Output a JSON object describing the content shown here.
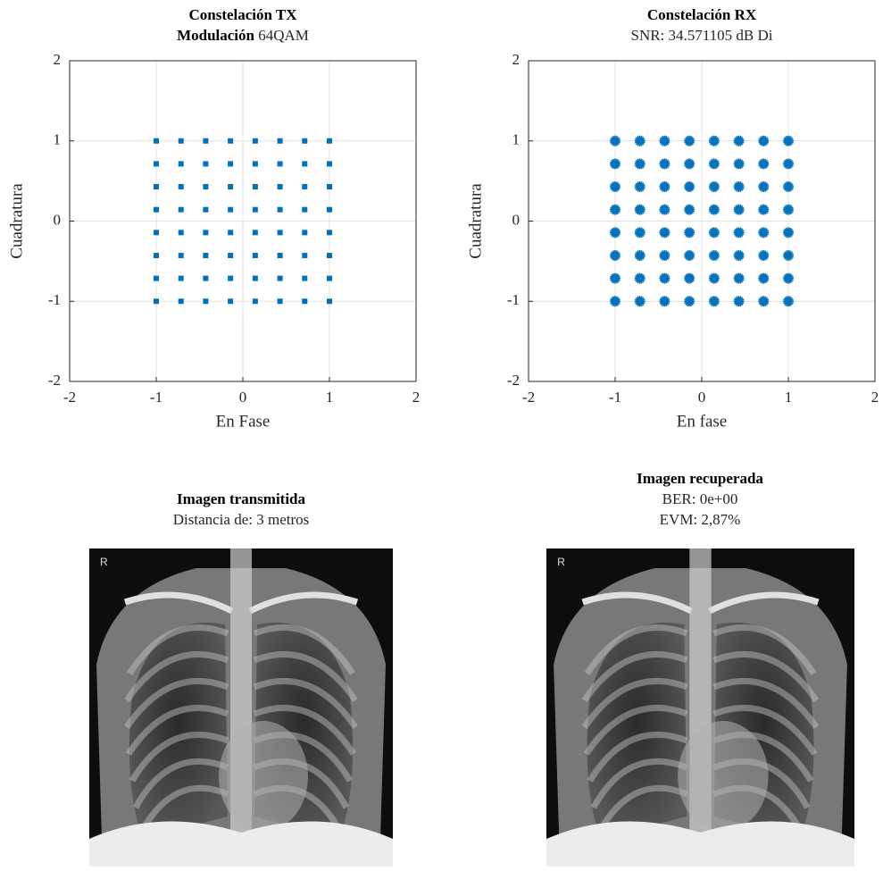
{
  "chart_data": [
    {
      "type": "scatter",
      "title": "Constelación TX",
      "subtitle_prefix": "Modulación",
      "subtitle": "64QAM",
      "xlabel": "En Fase",
      "ylabel": "Cuadratura",
      "marker": "square",
      "color": "#0072bd",
      "xlim": [
        -2,
        2
      ],
      "ylim": [
        -2,
        2
      ],
      "xticks": [
        -2,
        -1,
        0,
        1,
        2
      ],
      "yticks": [
        -2,
        -1,
        0,
        1,
        2
      ],
      "grid": true,
      "x": [
        -1,
        -1,
        -1,
        -1,
        -1,
        -1,
        -1,
        -1,
        -0.714,
        -0.714,
        -0.714,
        -0.714,
        -0.714,
        -0.714,
        -0.714,
        -0.714,
        -0.429,
        -0.429,
        -0.429,
        -0.429,
        -0.429,
        -0.429,
        -0.429,
        -0.429,
        -0.143,
        -0.143,
        -0.143,
        -0.143,
        -0.143,
        -0.143,
        -0.143,
        -0.143,
        0.143,
        0.143,
        0.143,
        0.143,
        0.143,
        0.143,
        0.143,
        0.143,
        0.429,
        0.429,
        0.429,
        0.429,
        0.429,
        0.429,
        0.429,
        0.429,
        0.714,
        0.714,
        0.714,
        0.714,
        0.714,
        0.714,
        0.714,
        0.714,
        1,
        1,
        1,
        1,
        1,
        1,
        1,
        1
      ],
      "y": [
        -1,
        -0.714,
        -0.429,
        -0.143,
        0.143,
        0.429,
        0.714,
        1,
        -1,
        -0.714,
        -0.429,
        -0.143,
        0.143,
        0.429,
        0.714,
        1,
        -1,
        -0.714,
        -0.429,
        -0.143,
        0.143,
        0.429,
        0.714,
        1,
        -1,
        -0.714,
        -0.429,
        -0.143,
        0.143,
        0.429,
        0.714,
        1,
        -1,
        -0.714,
        -0.429,
        -0.143,
        0.143,
        0.429,
        0.714,
        1,
        -1,
        -0.714,
        -0.429,
        -0.143,
        0.143,
        0.429,
        0.714,
        1,
        -1,
        -0.714,
        -0.429,
        -0.143,
        0.143,
        0.429,
        0.714,
        1,
        -1,
        -0.714,
        -0.429,
        -0.143,
        0.143,
        0.429,
        0.714,
        1
      ]
    },
    {
      "type": "scatter",
      "title": "Constelación RX",
      "subtitle": "SNR: 34.571105 dB Di",
      "xlabel": "En fase",
      "ylabel": "Cuadratura",
      "marker": "star",
      "color": "#0072bd",
      "xlim": [
        -2,
        2
      ],
      "ylim": [
        -2,
        2
      ],
      "xticks": [
        -2,
        -1,
        0,
        1,
        2
      ],
      "yticks": [
        -2,
        -1,
        0,
        1,
        2
      ],
      "grid": true,
      "x": [
        -1,
        -1,
        -1,
        -1,
        -1,
        -1,
        -1,
        -1,
        -0.714,
        -0.714,
        -0.714,
        -0.714,
        -0.714,
        -0.714,
        -0.714,
        -0.714,
        -0.429,
        -0.429,
        -0.429,
        -0.429,
        -0.429,
        -0.429,
        -0.429,
        -0.429,
        -0.143,
        -0.143,
        -0.143,
        -0.143,
        -0.143,
        -0.143,
        -0.143,
        -0.143,
        0.143,
        0.143,
        0.143,
        0.143,
        0.143,
        0.143,
        0.143,
        0.143,
        0.429,
        0.429,
        0.429,
        0.429,
        0.429,
        0.429,
        0.429,
        0.429,
        0.714,
        0.714,
        0.714,
        0.714,
        0.714,
        0.714,
        0.714,
        0.714,
        1,
        1,
        1,
        1,
        1,
        1,
        1,
        1
      ],
      "y": [
        -1,
        -0.714,
        -0.429,
        -0.143,
        0.143,
        0.429,
        0.714,
        1,
        -1,
        -0.714,
        -0.429,
        -0.143,
        0.143,
        0.429,
        0.714,
        1,
        -1,
        -0.714,
        -0.429,
        -0.143,
        0.143,
        0.429,
        0.714,
        1,
        -1,
        -0.714,
        -0.429,
        -0.143,
        0.143,
        0.429,
        0.714,
        1,
        -1,
        -0.714,
        -0.429,
        -0.143,
        0.143,
        0.429,
        0.714,
        1,
        -1,
        -0.714,
        -0.429,
        -0.143,
        0.143,
        0.429,
        0.714,
        1,
        -1,
        -0.714,
        -0.429,
        -0.143,
        0.143,
        0.429,
        0.714,
        1,
        -1,
        -0.714,
        -0.429,
        -0.143,
        0.143,
        0.429,
        0.714,
        1
      ]
    }
  ],
  "images": [
    {
      "title": "Imagen transmitida",
      "lines": [
        "Distancia de: 3 metros"
      ],
      "marker": "R"
    },
    {
      "title": "Imagen recuperada",
      "lines": [
        "BER: 0e+00",
        "EVM: 2,87%"
      ],
      "marker": "R"
    }
  ]
}
